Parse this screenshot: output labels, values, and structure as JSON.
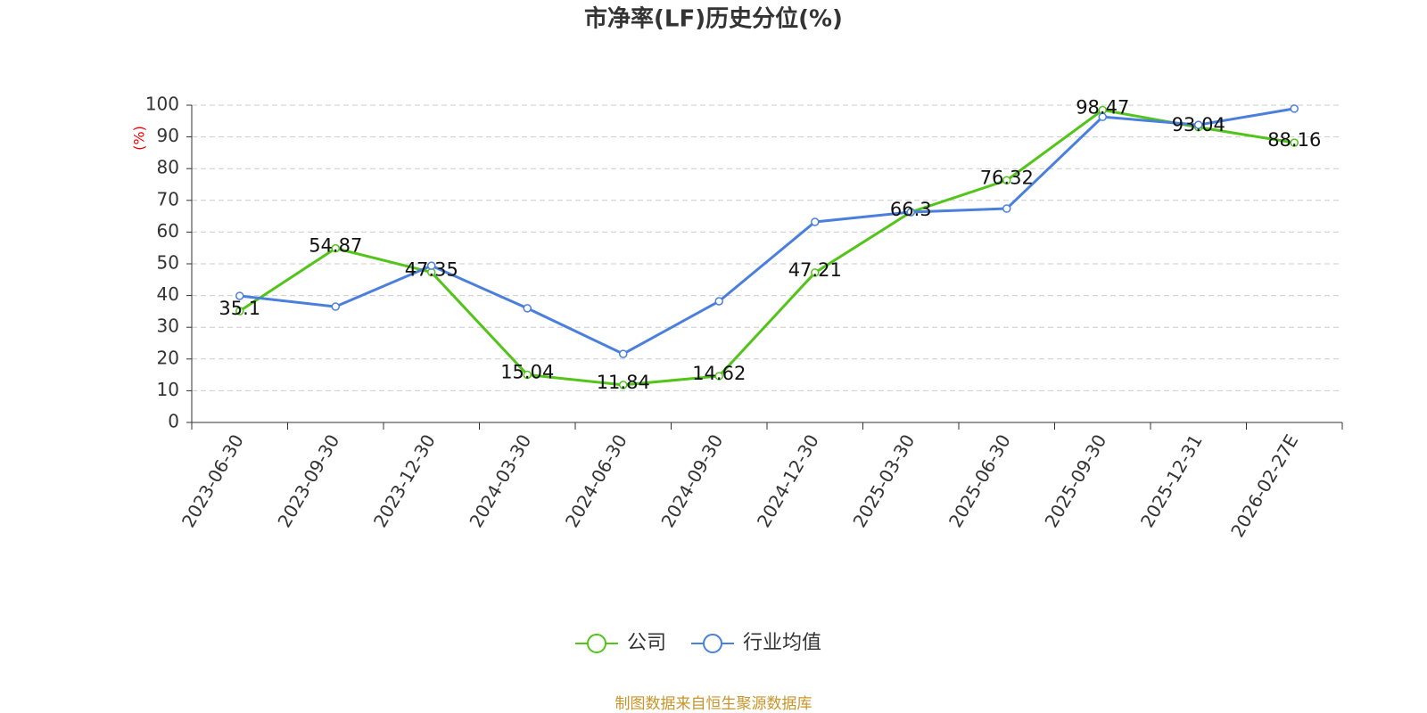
{
  "chart_data": {
    "type": "line",
    "title": "市净率(LF)历史分位(%)",
    "y_label": "(%)",
    "categories": [
      "2023-06-30",
      "2023-09-30",
      "2023-12-30",
      "2024-03-30",
      "2024-06-30",
      "2024-09-30",
      "2024-12-30",
      "2025-03-30",
      "2025-06-30",
      "2025-09-30",
      "2025-12-31",
      "2026-02-27E"
    ],
    "series": [
      {
        "name": "公司",
        "color": "#52c41a",
        "values": [
          35.1,
          54.87,
          47.35,
          15.04,
          11.84,
          14.62,
          47.21,
          66.3,
          76.32,
          98.47,
          93.04,
          88.16
        ]
      },
      {
        "name": "行业均值",
        "color": "#4a7fdc",
        "values": [
          39.9,
          36.5,
          49.4,
          36,
          21.6,
          38.2,
          63.2,
          66.3,
          67.4,
          96.3,
          93.8,
          98.9
        ]
      }
    ],
    "ylim": [
      0,
      100
    ],
    "yticks": [
      0,
      10,
      20,
      30,
      40,
      50,
      60,
      70,
      80,
      90,
      100
    ],
    "grid": true,
    "legend": "bottom",
    "source": "制图数据来自恒生聚源数据库"
  }
}
